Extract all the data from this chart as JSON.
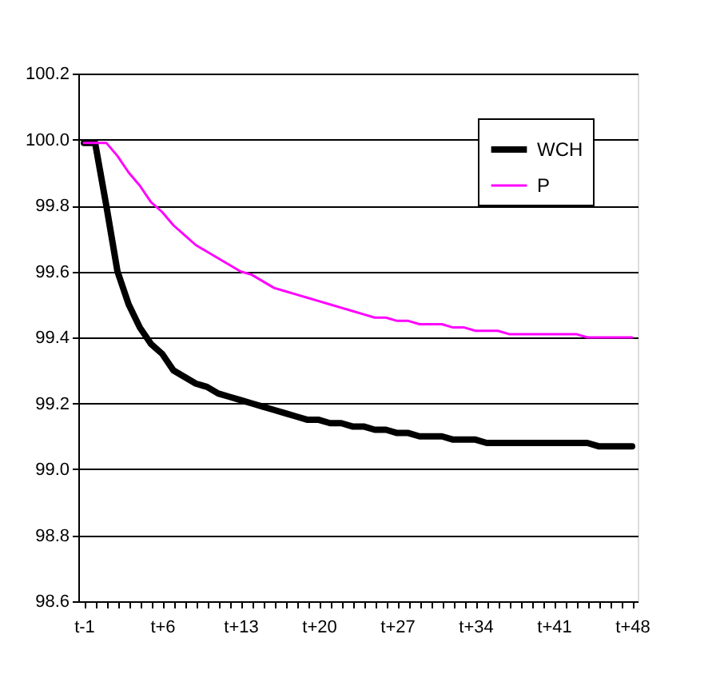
{
  "chart_data": {
    "type": "line",
    "categories": [
      "t-1",
      null,
      null,
      null,
      null,
      null,
      null,
      "t+6",
      null,
      null,
      null,
      null,
      null,
      null,
      "t+13",
      null,
      null,
      null,
      null,
      null,
      null,
      "t+20",
      null,
      null,
      null,
      null,
      null,
      null,
      "t+27",
      null,
      null,
      null,
      null,
      null,
      null,
      "t+34",
      null,
      null,
      null,
      null,
      null,
      null,
      "t+41",
      null,
      null,
      null,
      null,
      null,
      null,
      "t+48"
    ],
    "series": [
      {
        "name": "WCH",
        "color": "#000000",
        "values": [
          99.99,
          99.99,
          99.8,
          99.6,
          99.5,
          99.43,
          99.38,
          99.35,
          99.3,
          99.28,
          99.26,
          99.25,
          99.23,
          99.22,
          99.21,
          99.2,
          99.19,
          99.18,
          99.17,
          99.16,
          99.15,
          99.15,
          99.14,
          99.14,
          99.13,
          99.13,
          99.12,
          99.12,
          99.11,
          99.11,
          99.1,
          99.1,
          99.1,
          99.09,
          99.09,
          99.09,
          99.08,
          99.08,
          99.08,
          99.08,
          99.08,
          99.08,
          99.08,
          99.08,
          99.08,
          99.08,
          99.07,
          99.07,
          99.07,
          99.07
        ]
      },
      {
        "name": "P",
        "color": "#ff00ff",
        "values": [
          99.99,
          99.99,
          99.99,
          99.95,
          99.9,
          99.86,
          99.81,
          99.78,
          99.74,
          99.71,
          99.68,
          99.66,
          99.64,
          99.62,
          99.6,
          99.59,
          99.57,
          99.55,
          99.54,
          99.53,
          99.52,
          99.51,
          99.5,
          99.49,
          99.48,
          99.47,
          99.46,
          99.46,
          99.45,
          99.45,
          99.44,
          99.44,
          99.44,
          99.43,
          99.43,
          99.42,
          99.42,
          99.42,
          99.41,
          99.41,
          99.41,
          99.41,
          99.41,
          99.41,
          99.41,
          99.4,
          99.4,
          99.4,
          99.4,
          99.4
        ]
      }
    ],
    "ylim": [
      98.6,
      100.2
    ],
    "yticks": [
      {
        "value": 98.6,
        "label": "98.6"
      },
      {
        "value": 98.8,
        "label": "98.8"
      },
      {
        "value": 99.0,
        "label": "99.0"
      },
      {
        "value": 99.2,
        "label": "99.2"
      },
      {
        "value": 99.4,
        "label": "99.4"
      },
      {
        "value": 99.6,
        "label": "99.6"
      },
      {
        "value": 99.8,
        "label": "99.8"
      },
      {
        "value": 100.0,
        "label": "100.0"
      },
      {
        "value": 100.2,
        "label": "100.2"
      }
    ],
    "grid": "y",
    "legend": "top right",
    "marker": "none",
    "line_style": "solid"
  }
}
